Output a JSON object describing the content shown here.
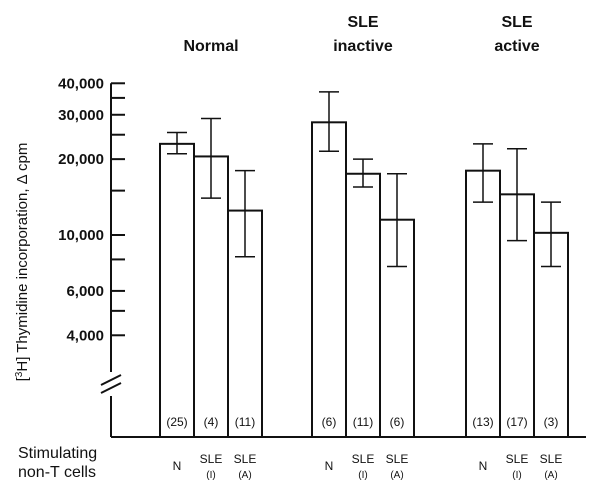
{
  "chart_data": {
    "type": "bar",
    "yscale": "log",
    "ylabel": "[3H] Thymidine incorporation, Δ cpm",
    "ylabel_parts": {
      "open": "[",
      "sup": "3",
      "rest": "H] Thymidine incorporation, Δ cpm"
    },
    "ylim": [
      2600,
      40000
    ],
    "y_axis_break": true,
    "yticks": [
      {
        "value": 40000,
        "label": "40,000"
      },
      {
        "value": 30000,
        "label": "30,000"
      },
      {
        "value": 20000,
        "label": "20,000"
      },
      {
        "value": 10000,
        "label": "10,000"
      },
      {
        "value": 6000,
        "label": "6,000"
      },
      {
        "value": 4000,
        "label": "4,000"
      }
    ],
    "minor_ticks": [
      35000,
      25000,
      15000,
      8000,
      5000
    ],
    "xlabel_lines": [
      "Stimulating",
      "non-T cells"
    ],
    "groups": [
      {
        "title_lines": [
          "Normal"
        ],
        "bars": [
          {
            "cat": "N",
            "sub": "",
            "value": 23000,
            "err_low": 21000,
            "err_high": 25500,
            "n": "(25)"
          },
          {
            "cat": "SLE",
            "sub": "(I)",
            "value": 20500,
            "err_low": 14000,
            "err_high": 29000,
            "n": "(4)"
          },
          {
            "cat": "SLE",
            "sub": "(A)",
            "value": 12500,
            "err_low": 8200,
            "err_high": 18000,
            "n": "(11)"
          }
        ]
      },
      {
        "title_lines": [
          "SLE",
          "inactive"
        ],
        "bars": [
          {
            "cat": "N",
            "sub": "",
            "value": 28000,
            "err_low": 21500,
            "err_high": 37000,
            "n": "(6)"
          },
          {
            "cat": "SLE",
            "sub": "(I)",
            "value": 17500,
            "err_low": 15500,
            "err_high": 20000,
            "n": "(11)"
          },
          {
            "cat": "SLE",
            "sub": "(A)",
            "value": 11500,
            "err_low": 7500,
            "err_high": 17500,
            "n": "(6)"
          }
        ]
      },
      {
        "title_lines": [
          "SLE",
          "active"
        ],
        "bars": [
          {
            "cat": "N",
            "sub": "",
            "value": 18000,
            "err_low": 13500,
            "err_high": 23000,
            "n": "(13)"
          },
          {
            "cat": "SLE",
            "sub": "(I)",
            "value": 14500,
            "err_low": 9500,
            "err_high": 22000,
            "n": "(17)"
          },
          {
            "cat": "SLE",
            "sub": "(A)",
            "value": 10200,
            "err_low": 7500,
            "err_high": 13500,
            "n": "(3)"
          }
        ]
      }
    ]
  }
}
